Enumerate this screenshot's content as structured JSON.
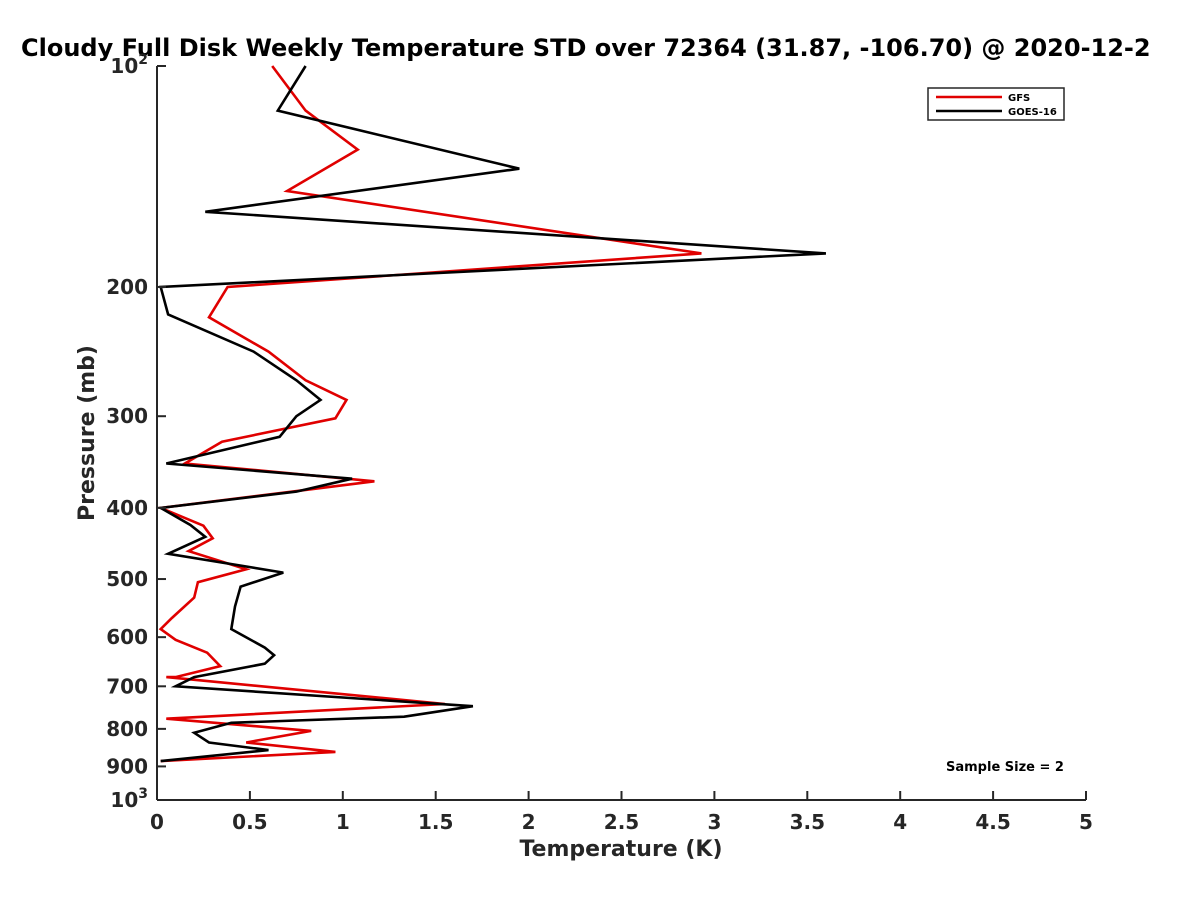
{
  "chart_data": {
    "type": "line",
    "title": "Cloudy Full Disk Weekly Temperature STD over 72364 (31.87, -106.70) @ 2020-12-2",
    "xlabel": "Temperature (K)",
    "ylabel": "Pressure (mb)",
    "xlim": [
      0,
      5
    ],
    "ylim": [
      100,
      1000
    ],
    "y_scale": "log",
    "y_reversed": true,
    "grid": false,
    "legend_position": "top-right",
    "x_ticks": [
      "0",
      "0.5",
      "1",
      "1.5",
      "2",
      "2.5",
      "3",
      "3.5",
      "4",
      "4.5",
      "5"
    ],
    "x_tick_values": [
      0,
      0.5,
      1,
      1.5,
      2,
      2.5,
      3,
      3.5,
      4,
      4.5,
      5
    ],
    "y_ticks": [
      {
        "value": 100,
        "base": "10",
        "exp": "2"
      },
      {
        "value": 200,
        "label": "200"
      },
      {
        "value": 300,
        "label": "300"
      },
      {
        "value": 400,
        "label": "400"
      },
      {
        "value": 500,
        "label": "500"
      },
      {
        "value": 600,
        "label": "600"
      },
      {
        "value": 700,
        "label": "700"
      },
      {
        "value": 800,
        "label": "800"
      },
      {
        "value": 900,
        "label": "900"
      },
      {
        "value": 1000,
        "base": "10",
        "exp": "3"
      }
    ],
    "annotation": "Sample Size = 2",
    "series": [
      {
        "name": "GFS",
        "color": "#e00000",
        "points": [
          [
            0.62,
            100
          ],
          [
            0.8,
            115
          ],
          [
            1.08,
            130
          ],
          [
            0.7,
            148
          ],
          [
            2.93,
            180
          ],
          [
            0.38,
            200
          ],
          [
            0.28,
            220
          ],
          [
            0.6,
            245
          ],
          [
            0.8,
            268
          ],
          [
            1.02,
            285
          ],
          [
            0.96,
            302
          ],
          [
            0.35,
            325
          ],
          [
            0.15,
            348
          ],
          [
            1.17,
            368
          ],
          [
            0.73,
            380
          ],
          [
            0.02,
            400
          ],
          [
            0.25,
            423
          ],
          [
            0.3,
            440
          ],
          [
            0.17,
            458
          ],
          [
            0.48,
            485
          ],
          [
            0.22,
            505
          ],
          [
            0.2,
            530
          ],
          [
            0.08,
            565
          ],
          [
            0.02,
            585
          ],
          [
            0.1,
            605
          ],
          [
            0.27,
            630
          ],
          [
            0.34,
            657
          ],
          [
            0.1,
            680
          ],
          [
            0.05,
            680
          ],
          [
            1.55,
            740
          ],
          [
            0.05,
            775
          ],
          [
            0.83,
            805
          ],
          [
            0.48,
            835
          ],
          [
            0.96,
            860
          ],
          [
            0.02,
            885
          ]
        ]
      },
      {
        "name": "GOES-16",
        "color": "#000000",
        "points": [
          [
            0.8,
            100
          ],
          [
            0.65,
            115
          ],
          [
            1.95,
            138
          ],
          [
            0.26,
            158
          ],
          [
            3.6,
            180
          ],
          [
            0.02,
            200
          ],
          [
            0.06,
            218
          ],
          [
            0.52,
            245
          ],
          [
            0.75,
            268
          ],
          [
            0.88,
            285
          ],
          [
            0.75,
            300
          ],
          [
            0.66,
            320
          ],
          [
            0.05,
            348
          ],
          [
            1.05,
            365
          ],
          [
            0.75,
            380
          ],
          [
            0.02,
            400
          ],
          [
            0.18,
            422
          ],
          [
            0.26,
            438
          ],
          [
            0.06,
            462
          ],
          [
            0.68,
            490
          ],
          [
            0.45,
            512
          ],
          [
            0.42,
            545
          ],
          [
            0.4,
            585
          ],
          [
            0.58,
            620
          ],
          [
            0.63,
            635
          ],
          [
            0.58,
            652
          ],
          [
            0.2,
            680
          ],
          [
            0.1,
            700
          ],
          [
            1.7,
            745
          ],
          [
            1.33,
            770
          ],
          [
            0.4,
            785
          ],
          [
            0.2,
            810
          ],
          [
            0.28,
            835
          ],
          [
            0.6,
            855
          ],
          [
            0.02,
            885
          ]
        ]
      }
    ]
  }
}
